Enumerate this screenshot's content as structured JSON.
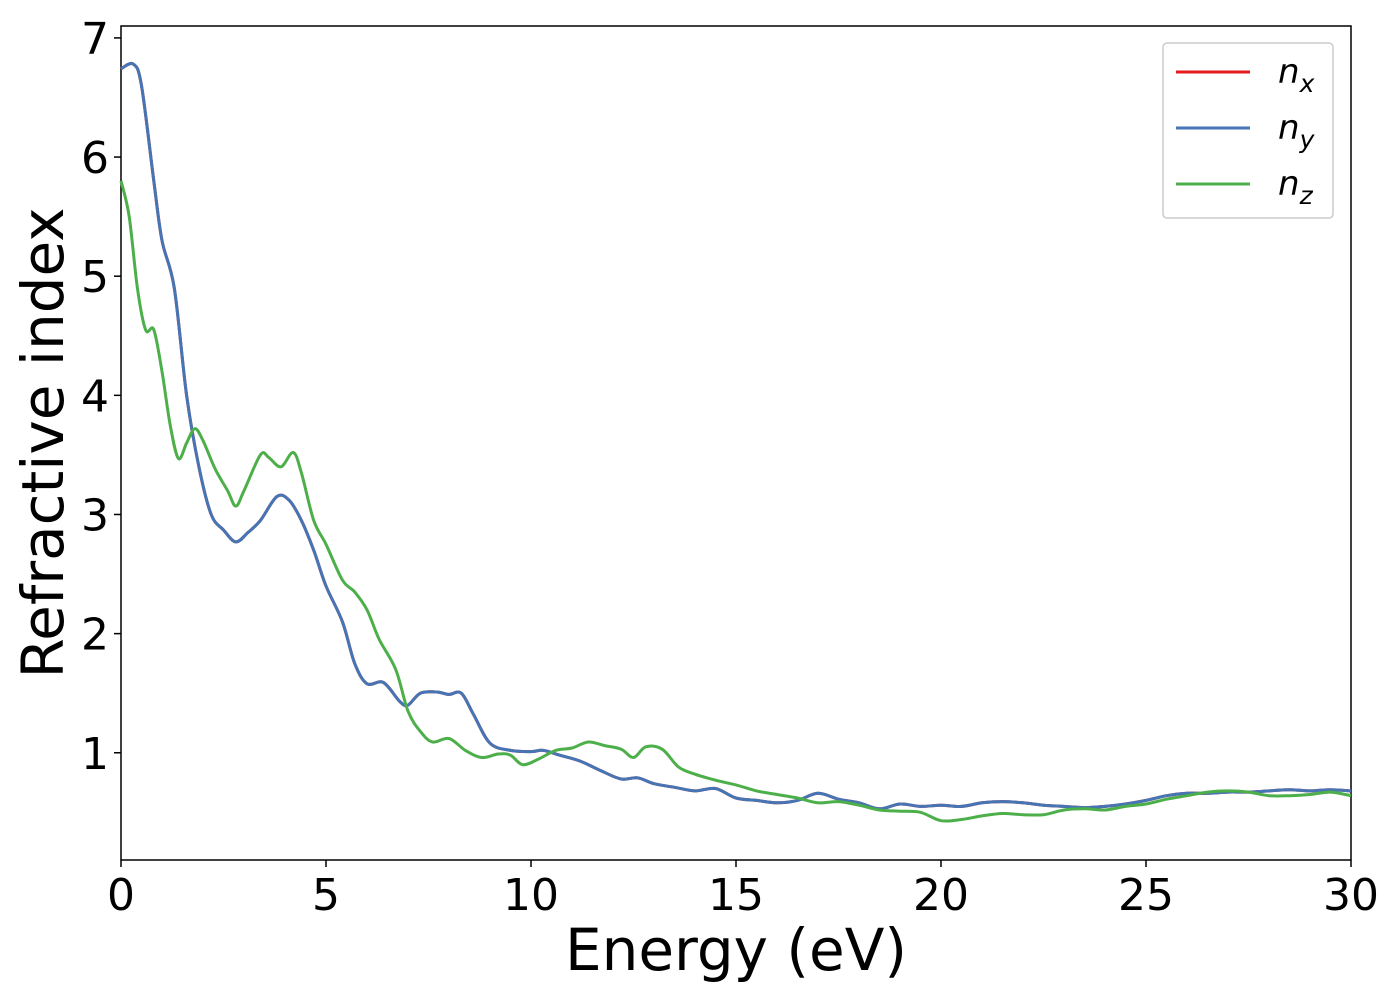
{
  "chart_data": {
    "type": "line",
    "xlabel": "Energy (eV)",
    "ylabel": "Refractive index",
    "xlim": [
      0,
      30
    ],
    "ylim": [
      0.1,
      7.1
    ],
    "xticks": [
      0,
      5,
      10,
      15,
      20,
      25,
      30
    ],
    "yticks": [
      1,
      2,
      3,
      4,
      5,
      6,
      7
    ],
    "grid": false,
    "legend_position": "top-right",
    "series": [
      {
        "name": "n_x",
        "color": "#e41a1c",
        "points": [
          [
            0,
            6.74
          ],
          [
            0.3,
            6.78
          ],
          [
            0.5,
            6.6
          ],
          [
            0.8,
            5.8
          ],
          [
            1,
            5.3
          ],
          [
            1.3,
            4.9
          ],
          [
            1.6,
            4.0
          ],
          [
            1.9,
            3.4
          ],
          [
            2.2,
            3.0
          ],
          [
            2.5,
            2.87
          ],
          [
            2.8,
            2.77
          ],
          [
            3.1,
            2.85
          ],
          [
            3.4,
            2.95
          ],
          [
            3.8,
            3.15
          ],
          [
            4.1,
            3.12
          ],
          [
            4.4,
            2.95
          ],
          [
            4.7,
            2.7
          ],
          [
            5.0,
            2.4
          ],
          [
            5.4,
            2.1
          ],
          [
            5.7,
            1.75
          ],
          [
            6.0,
            1.58
          ],
          [
            6.4,
            1.59
          ],
          [
            6.8,
            1.43
          ],
          [
            7.0,
            1.4
          ],
          [
            7.3,
            1.5
          ],
          [
            7.7,
            1.51
          ],
          [
            8.0,
            1.49
          ],
          [
            8.3,
            1.5
          ],
          [
            8.6,
            1.32
          ],
          [
            9.0,
            1.08
          ],
          [
            9.5,
            1.02
          ],
          [
            10,
            1.01
          ],
          [
            10.3,
            1.02
          ],
          [
            10.7,
            0.98
          ],
          [
            11.2,
            0.93
          ],
          [
            11.7,
            0.85
          ],
          [
            12.2,
            0.78
          ],
          [
            12.6,
            0.79
          ],
          [
            13.0,
            0.74
          ],
          [
            13.5,
            0.71
          ],
          [
            14.0,
            0.68
          ],
          [
            14.5,
            0.7
          ],
          [
            15.0,
            0.62
          ],
          [
            15.5,
            0.6
          ],
          [
            16.0,
            0.58
          ],
          [
            16.5,
            0.6
          ],
          [
            17.0,
            0.66
          ],
          [
            17.5,
            0.61
          ],
          [
            18.0,
            0.58
          ],
          [
            18.5,
            0.53
          ],
          [
            19.0,
            0.57
          ],
          [
            19.5,
            0.55
          ],
          [
            20.0,
            0.56
          ],
          [
            20.5,
            0.55
          ],
          [
            21.0,
            0.58
          ],
          [
            21.5,
            0.59
          ],
          [
            22.0,
            0.58
          ],
          [
            22.5,
            0.56
          ],
          [
            23.0,
            0.55
          ],
          [
            23.5,
            0.54
          ],
          [
            24.0,
            0.55
          ],
          [
            24.5,
            0.57
          ],
          [
            25.0,
            0.6
          ],
          [
            25.5,
            0.64
          ],
          [
            26.0,
            0.66
          ],
          [
            26.5,
            0.66
          ],
          [
            27.0,
            0.67
          ],
          [
            27.5,
            0.67
          ],
          [
            28.0,
            0.68
          ],
          [
            28.5,
            0.69
          ],
          [
            29.0,
            0.68
          ],
          [
            29.5,
            0.69
          ],
          [
            30,
            0.68
          ]
        ]
      },
      {
        "name": "n_y",
        "color": "#4575b4",
        "points": [
          [
            0,
            6.74
          ],
          [
            0.3,
            6.78
          ],
          [
            0.5,
            6.6
          ],
          [
            0.8,
            5.8
          ],
          [
            1,
            5.3
          ],
          [
            1.3,
            4.9
          ],
          [
            1.6,
            4.0
          ],
          [
            1.9,
            3.4
          ],
          [
            2.2,
            3.0
          ],
          [
            2.5,
            2.87
          ],
          [
            2.8,
            2.77
          ],
          [
            3.1,
            2.85
          ],
          [
            3.4,
            2.95
          ],
          [
            3.8,
            3.15
          ],
          [
            4.1,
            3.12
          ],
          [
            4.4,
            2.95
          ],
          [
            4.7,
            2.7
          ],
          [
            5.0,
            2.4
          ],
          [
            5.4,
            2.1
          ],
          [
            5.7,
            1.75
          ],
          [
            6.0,
            1.58
          ],
          [
            6.4,
            1.59
          ],
          [
            6.8,
            1.43
          ],
          [
            7.0,
            1.4
          ],
          [
            7.3,
            1.5
          ],
          [
            7.7,
            1.51
          ],
          [
            8.0,
            1.49
          ],
          [
            8.3,
            1.5
          ],
          [
            8.6,
            1.32
          ],
          [
            9.0,
            1.08
          ],
          [
            9.5,
            1.02
          ],
          [
            10,
            1.01
          ],
          [
            10.3,
            1.02
          ],
          [
            10.7,
            0.98
          ],
          [
            11.2,
            0.93
          ],
          [
            11.7,
            0.85
          ],
          [
            12.2,
            0.78
          ],
          [
            12.6,
            0.79
          ],
          [
            13.0,
            0.74
          ],
          [
            13.5,
            0.71
          ],
          [
            14.0,
            0.68
          ],
          [
            14.5,
            0.7
          ],
          [
            15.0,
            0.62
          ],
          [
            15.5,
            0.6
          ],
          [
            16.0,
            0.58
          ],
          [
            16.5,
            0.6
          ],
          [
            17.0,
            0.66
          ],
          [
            17.5,
            0.61
          ],
          [
            18.0,
            0.58
          ],
          [
            18.5,
            0.53
          ],
          [
            19.0,
            0.57
          ],
          [
            19.5,
            0.55
          ],
          [
            20.0,
            0.56
          ],
          [
            20.5,
            0.55
          ],
          [
            21.0,
            0.58
          ],
          [
            21.5,
            0.59
          ],
          [
            22.0,
            0.58
          ],
          [
            22.5,
            0.56
          ],
          [
            23.0,
            0.55
          ],
          [
            23.5,
            0.54
          ],
          [
            24.0,
            0.55
          ],
          [
            24.5,
            0.57
          ],
          [
            25.0,
            0.6
          ],
          [
            25.5,
            0.64
          ],
          [
            26.0,
            0.66
          ],
          [
            26.5,
            0.66
          ],
          [
            27.0,
            0.67
          ],
          [
            27.5,
            0.67
          ],
          [
            28.0,
            0.68
          ],
          [
            28.5,
            0.69
          ],
          [
            29.0,
            0.68
          ],
          [
            29.5,
            0.69
          ],
          [
            30,
            0.68
          ]
        ]
      },
      {
        "name": "n_z",
        "color": "#4daf4a",
        "points": [
          [
            0,
            5.8
          ],
          [
            0.2,
            5.5
          ],
          [
            0.4,
            4.9
          ],
          [
            0.6,
            4.55
          ],
          [
            0.8,
            4.55
          ],
          [
            1.0,
            4.2
          ],
          [
            1.2,
            3.75
          ],
          [
            1.4,
            3.47
          ],
          [
            1.6,
            3.6
          ],
          [
            1.8,
            3.72
          ],
          [
            2.0,
            3.62
          ],
          [
            2.3,
            3.38
          ],
          [
            2.6,
            3.2
          ],
          [
            2.8,
            3.07
          ],
          [
            3.0,
            3.2
          ],
          [
            3.4,
            3.5
          ],
          [
            3.6,
            3.48
          ],
          [
            3.9,
            3.4
          ],
          [
            4.2,
            3.52
          ],
          [
            4.4,
            3.35
          ],
          [
            4.7,
            2.95
          ],
          [
            5.0,
            2.75
          ],
          [
            5.4,
            2.45
          ],
          [
            5.7,
            2.35
          ],
          [
            6.0,
            2.2
          ],
          [
            6.3,
            1.95
          ],
          [
            6.7,
            1.7
          ],
          [
            7.0,
            1.35
          ],
          [
            7.3,
            1.18
          ],
          [
            7.6,
            1.09
          ],
          [
            8.0,
            1.12
          ],
          [
            8.4,
            1.02
          ],
          [
            8.8,
            0.96
          ],
          [
            9.2,
            0.99
          ],
          [
            9.5,
            0.98
          ],
          [
            9.8,
            0.9
          ],
          [
            10.2,
            0.95
          ],
          [
            10.6,
            1.02
          ],
          [
            11.0,
            1.04
          ],
          [
            11.4,
            1.09
          ],
          [
            11.8,
            1.06
          ],
          [
            12.2,
            1.03
          ],
          [
            12.5,
            0.96
          ],
          [
            12.8,
            1.05
          ],
          [
            13.2,
            1.03
          ],
          [
            13.6,
            0.88
          ],
          [
            14.0,
            0.82
          ],
          [
            14.5,
            0.77
          ],
          [
            15.0,
            0.73
          ],
          [
            15.5,
            0.68
          ],
          [
            16.0,
            0.65
          ],
          [
            16.5,
            0.62
          ],
          [
            17.0,
            0.58
          ],
          [
            17.5,
            0.59
          ],
          [
            18.0,
            0.56
          ],
          [
            18.5,
            0.52
          ],
          [
            19.0,
            0.51
          ],
          [
            19.5,
            0.5
          ],
          [
            20.0,
            0.43
          ],
          [
            20.5,
            0.44
          ],
          [
            21.0,
            0.47
          ],
          [
            21.5,
            0.49
          ],
          [
            22.0,
            0.48
          ],
          [
            22.5,
            0.48
          ],
          [
            23.0,
            0.52
          ],
          [
            23.5,
            0.53
          ],
          [
            24.0,
            0.52
          ],
          [
            24.5,
            0.55
          ],
          [
            25.0,
            0.57
          ],
          [
            25.5,
            0.61
          ],
          [
            26.0,
            0.64
          ],
          [
            26.5,
            0.67
          ],
          [
            27.0,
            0.68
          ],
          [
            27.5,
            0.67
          ],
          [
            28.0,
            0.64
          ],
          [
            28.5,
            0.64
          ],
          [
            29.0,
            0.65
          ],
          [
            29.5,
            0.67
          ],
          [
            30,
            0.64
          ]
        ]
      }
    ],
    "legend": [
      {
        "base": "n",
        "sub": "x",
        "color": "#e41a1c"
      },
      {
        "base": "n",
        "sub": "y",
        "color": "#4575b4"
      },
      {
        "base": "n",
        "sub": "z",
        "color": "#4daf4a"
      }
    ]
  }
}
